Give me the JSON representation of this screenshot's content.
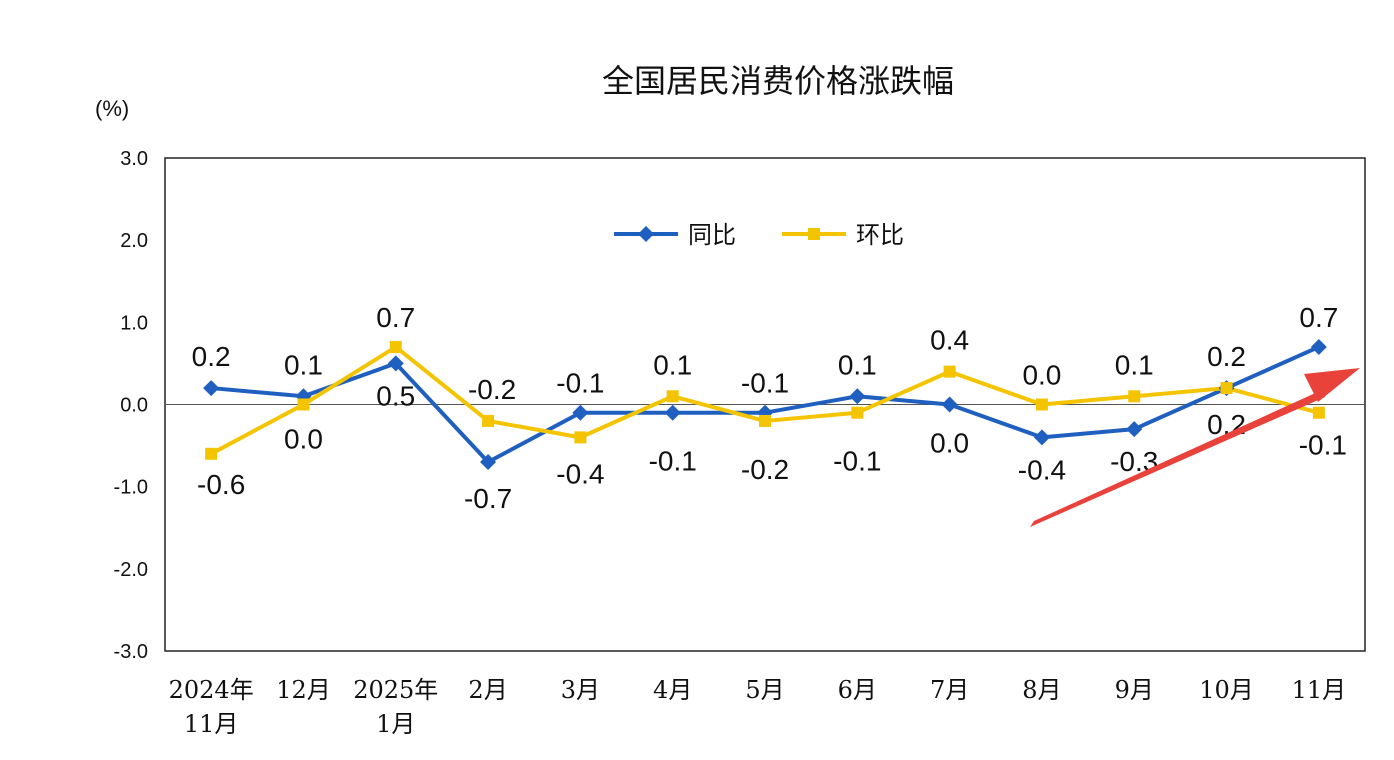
{
  "chart_data": {
    "type": "line",
    "title": "全国居民消费价格涨跌幅",
    "unit_label": "(%)",
    "ylim": [
      -3.0,
      3.0
    ],
    "yticks": [
      "3.0",
      "2.0",
      "1.0",
      "0.0",
      "-1.0",
      "-2.0",
      "-3.0"
    ],
    "ytick_values": [
      3,
      2,
      1,
      0,
      -1,
      -2,
      -3
    ],
    "categories": [
      [
        "2024年",
        "11月"
      ],
      [
        "12月"
      ],
      [
        "2025年",
        "1月"
      ],
      [
        "2月"
      ],
      [
        "3月"
      ],
      [
        "4月"
      ],
      [
        "5月"
      ],
      [
        "6月"
      ],
      [
        "7月"
      ],
      [
        "8月"
      ],
      [
        "9月"
      ],
      [
        "10月"
      ],
      [
        "11月"
      ]
    ],
    "series": [
      {
        "name": "同比",
        "color": "#1f5fbf",
        "marker": "diamond",
        "values": [
          0.2,
          0.1,
          0.5,
          -0.7,
          -0.1,
          -0.1,
          -0.1,
          0.1,
          0.0,
          -0.4,
          -0.3,
          0.2,
          0.7
        ],
        "labels": [
          "0.2",
          "0.1",
          "0.5",
          "-0.7",
          "-0.1",
          "-0.1",
          "-0.1",
          "0.1",
          "0.0",
          "-0.4",
          "-0.3",
          "0.2",
          "0.7"
        ]
      },
      {
        "name": "环比",
        "color": "#f5c400",
        "marker": "square",
        "values": [
          -0.6,
          0.0,
          0.7,
          -0.2,
          -0.4,
          0.1,
          -0.2,
          -0.1,
          0.4,
          0.0,
          0.1,
          0.2,
          -0.1
        ],
        "labels": [
          "-0.6",
          "0.0",
          "0.7",
          "-0.2",
          "-0.4",
          "0.1",
          "-0.2",
          "-0.1",
          "0.4",
          "0.0",
          "0.1",
          "0.2",
          "-0.1"
        ]
      }
    ],
    "legend_position": "top-center",
    "annotation": {
      "type": "arrow",
      "color": "#e8423b",
      "description": "upward trend"
    }
  }
}
